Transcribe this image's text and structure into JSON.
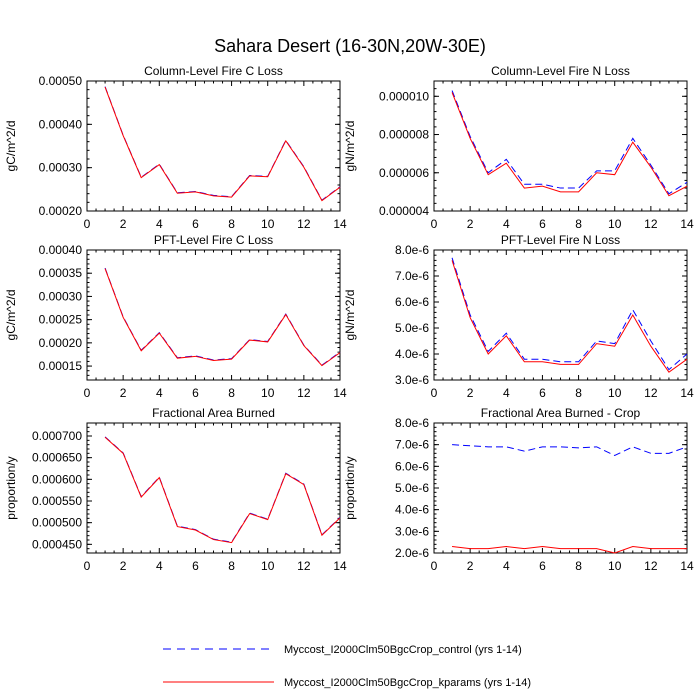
{
  "figure": {
    "title": "Sahara Desert (16-30N,20W-30E)"
  },
  "colors": {
    "control": "#0000ff",
    "kparams": "#ff0000",
    "axis": "#000000"
  },
  "legend": [
    {
      "label": "Myccost_I2000Clm50BgcCrop_control (yrs 1-14)",
      "color": "#0000ff",
      "dash": "dashed"
    },
    {
      "label": "Myccost_I2000Clm50BgcCrop_kparams (yrs 1-14)",
      "color": "#ff0000",
      "dash": "solid"
    }
  ],
  "chart_data": [
    {
      "type": "line",
      "title": "Column-Level Fire C Loss",
      "xlabel": "",
      "ylabel": "gC/m^2/d",
      "xlim": [
        0,
        14
      ],
      "ylim": [
        0.0002,
        0.0005
      ],
      "xticks": [
        0,
        2,
        4,
        6,
        8,
        10,
        12,
        14
      ],
      "xtick_labels": [
        "0",
        "2",
        "4",
        "6",
        "8",
        "10",
        "12",
        "14"
      ],
      "yticks": [
        0.0002,
        0.0003,
        0.0004,
        0.0005
      ],
      "ytick_labels": [
        "0.00020",
        "0.00030",
        "0.00040",
        "0.00050"
      ],
      "x": [
        1,
        2,
        3,
        4,
        5,
        6,
        7,
        8,
        9,
        10,
        11,
        12,
        13,
        14
      ],
      "series": [
        {
          "name": "Myccost_I2000Clm50BgcCrop_control (yrs 1-14)",
          "values": [
            0.000487,
            0.000375,
            0.000278,
            0.000308,
            0.000242,
            0.000245,
            0.000236,
            0.000233,
            0.000282,
            0.00028,
            0.000363,
            0.000302,
            0.000225,
            0.000256
          ]
        },
        {
          "name": "Myccost_I2000Clm50BgcCrop_kparams (yrs 1-14)",
          "values": [
            0.000486,
            0.000374,
            0.000277,
            0.000307,
            0.000241,
            0.000244,
            0.000235,
            0.000232,
            0.000281,
            0.000279,
            0.000362,
            0.000301,
            0.000224,
            0.000255
          ]
        }
      ]
    },
    {
      "type": "line",
      "title": "Column-Level Fire N Loss",
      "xlabel": "",
      "ylabel": "gN/m^2/d",
      "xlim": [
        0,
        14
      ],
      "ylim": [
        4e-06,
        1.08e-05
      ],
      "xticks": [
        0,
        2,
        4,
        6,
        8,
        10,
        12,
        14
      ],
      "xtick_labels": [
        "0",
        "2",
        "4",
        "6",
        "8",
        "10",
        "12",
        "14"
      ],
      "yticks": [
        4e-06,
        6e-06,
        8e-06,
        1e-05
      ],
      "ytick_labels": [
        "0.000004",
        "0.000006",
        "0.000008",
        "0.000010"
      ],
      "x": [
        1,
        2,
        3,
        4,
        5,
        6,
        7,
        8,
        9,
        10,
        11,
        12,
        13,
        14
      ],
      "series": [
        {
          "name": "Myccost_I2000Clm50BgcCrop_control (yrs 1-14)",
          "values": [
            1.03e-05,
            7.9e-06,
            6e-06,
            6.7e-06,
            5.4e-06,
            5.4e-06,
            5.2e-06,
            5.2e-06,
            6.1e-06,
            6.1e-06,
            7.8e-06,
            6.4e-06,
            4.9e-06,
            5.5e-06
          ]
        },
        {
          "name": "Myccost_I2000Clm50BgcCrop_kparams (yrs 1-14)",
          "values": [
            1.02e-05,
            7.8e-06,
            5.9e-06,
            6.5e-06,
            5.2e-06,
            5.3e-06,
            5e-06,
            5e-06,
            6e-06,
            5.9e-06,
            7.6e-06,
            6.3e-06,
            4.8e-06,
            5.3e-06
          ]
        }
      ]
    },
    {
      "type": "line",
      "title": "PFT-Level Fire C Loss",
      "xlabel": "",
      "ylabel": "gC/m^2/d",
      "xlim": [
        0,
        14
      ],
      "ylim": [
        0.00012,
        0.0004
      ],
      "xticks": [
        0,
        2,
        4,
        6,
        8,
        10,
        12,
        14
      ],
      "xtick_labels": [
        "0",
        "2",
        "4",
        "6",
        "8",
        "10",
        "12",
        "14"
      ],
      "yticks": [
        0.00015,
        0.0002,
        0.00025,
        0.0003,
        0.00035,
        0.0004
      ],
      "ytick_labels": [
        "0.00015",
        "0.00020",
        "0.00025",
        "0.00030",
        "0.00035",
        "0.00040"
      ],
      "x": [
        1,
        2,
        3,
        4,
        5,
        6,
        7,
        8,
        9,
        10,
        11,
        12,
        13,
        14
      ],
      "series": [
        {
          "name": "Myccost_I2000Clm50BgcCrop_control (yrs 1-14)",
          "values": [
            0.000361,
            0.000256,
            0.000184,
            0.000222,
            0.000168,
            0.000172,
            0.000163,
            0.000166,
            0.000207,
            0.000203,
            0.000262,
            0.000195,
            0.000152,
            0.00018
          ]
        },
        {
          "name": "Myccost_I2000Clm50BgcCrop_kparams (yrs 1-14)",
          "values": [
            0.00036,
            0.000255,
            0.000183,
            0.000221,
            0.000167,
            0.000171,
            0.000162,
            0.000165,
            0.000206,
            0.000202,
            0.000261,
            0.000194,
            0.000151,
            0.000179
          ]
        }
      ]
    },
    {
      "type": "line",
      "title": "PFT-Level Fire N Loss",
      "xlabel": "",
      "ylabel": "gN/m^2/d",
      "xlim": [
        0,
        14
      ],
      "ylim": [
        3e-06,
        8e-06
      ],
      "xticks": [
        0,
        2,
        4,
        6,
        8,
        10,
        12,
        14
      ],
      "xtick_labels": [
        "0",
        "2",
        "4",
        "6",
        "8",
        "10",
        "12",
        "14"
      ],
      "yticks": [
        3e-06,
        4e-06,
        5e-06,
        6e-06,
        7e-06,
        8e-06
      ],
      "ytick_labels": [
        "3.0e-6",
        "4.0e-6",
        "5.0e-6",
        "6.0e-6",
        "7.0e-6",
        "8.0e-6"
      ],
      "x": [
        1,
        2,
        3,
        4,
        5,
        6,
        7,
        8,
        9,
        10,
        11,
        12,
        13,
        14
      ],
      "series": [
        {
          "name": "Myccost_I2000Clm50BgcCrop_control (yrs 1-14)",
          "values": [
            7.7e-06,
            5.5e-06,
            4.1e-06,
            4.8e-06,
            3.8e-06,
            3.8e-06,
            3.7e-06,
            3.7e-06,
            4.5e-06,
            4.4e-06,
            5.7e-06,
            4.5e-06,
            3.4e-06,
            4e-06
          ]
        },
        {
          "name": "Myccost_I2000Clm50BgcCrop_kparams (yrs 1-14)",
          "values": [
            7.6e-06,
            5.4e-06,
            4e-06,
            4.7e-06,
            3.7e-06,
            3.7e-06,
            3.6e-06,
            3.6e-06,
            4.4e-06,
            4.3e-06,
            5.5e-06,
            4.3e-06,
            3.3e-06,
            3.8e-06
          ]
        }
      ]
    },
    {
      "type": "line",
      "title": "Fractional Area Burned",
      "xlabel": "",
      "ylabel": "proportion/y",
      "xlim": [
        0,
        14
      ],
      "ylim": [
        0.00043,
        0.00073
      ],
      "xticks": [
        0,
        2,
        4,
        6,
        8,
        10,
        12,
        14
      ],
      "xtick_labels": [
        "0",
        "2",
        "4",
        "6",
        "8",
        "10",
        "12",
        "14"
      ],
      "yticks": [
        0.00045,
        0.0005,
        0.00055,
        0.0006,
        0.00065,
        0.0007
      ],
      "ytick_labels": [
        "0.000450",
        "0.000500",
        "0.000550",
        "0.000600",
        "0.000650",
        "0.000700"
      ],
      "x": [
        1,
        2,
        3,
        4,
        5,
        6,
        7,
        8,
        9,
        10,
        11,
        12,
        13,
        14
      ],
      "series": [
        {
          "name": "Myccost_I2000Clm50BgcCrop_control (yrs 1-14)",
          "values": [
            0.000698,
            0.000661,
            0.00056,
            0.000605,
            0.000492,
            0.000484,
            0.000462,
            0.000455,
            0.000522,
            0.000508,
            0.000614,
            0.000589,
            0.000472,
            0.000512
          ]
        },
        {
          "name": "Myccost_I2000Clm50BgcCrop_kparams (yrs 1-14)",
          "values": [
            0.000697,
            0.00066,
            0.000559,
            0.000604,
            0.000491,
            0.000483,
            0.000461,
            0.000454,
            0.000521,
            0.000507,
            0.000613,
            0.000588,
            0.000471,
            0.000511
          ]
        }
      ]
    },
    {
      "type": "line",
      "title": "Fractional Area Burned - Crop",
      "xlabel": "",
      "ylabel": "proportion/y",
      "xlim": [
        0,
        14
      ],
      "ylim": [
        2e-06,
        8e-06
      ],
      "xticks": [
        0,
        2,
        4,
        6,
        8,
        10,
        12,
        14
      ],
      "xtick_labels": [
        "0",
        "2",
        "4",
        "6",
        "8",
        "10",
        "12",
        "14"
      ],
      "yticks": [
        2e-06,
        3e-06,
        4e-06,
        5e-06,
        6e-06,
        7e-06,
        8e-06
      ],
      "ytick_labels": [
        "2.0e-6",
        "3.0e-6",
        "4.0e-6",
        "5.0e-6",
        "6.0e-6",
        "7.0e-6",
        "8.0e-6"
      ],
      "x": [
        1,
        2,
        3,
        4,
        5,
        6,
        7,
        8,
        9,
        10,
        11,
        12,
        13,
        14
      ],
      "series": [
        {
          "name": "Myccost_I2000Clm50BgcCrop_control (yrs 1-14)",
          "values": [
            7e-06,
            6.95e-06,
            6.9e-06,
            6.9e-06,
            6.7e-06,
            6.9e-06,
            6.9e-06,
            6.85e-06,
            6.9e-06,
            6.5e-06,
            6.9e-06,
            6.6e-06,
            6.6e-06,
            6.9e-06
          ]
        },
        {
          "name": "Myccost_I2000Clm50BgcCrop_kparams (yrs 1-14)",
          "values": [
            2.3e-06,
            2.2e-06,
            2.2e-06,
            2.3e-06,
            2.2e-06,
            2.3e-06,
            2.2e-06,
            2.2e-06,
            2.2e-06,
            2e-06,
            2.3e-06,
            2.2e-06,
            2.2e-06,
            2.2e-06
          ]
        }
      ]
    }
  ]
}
